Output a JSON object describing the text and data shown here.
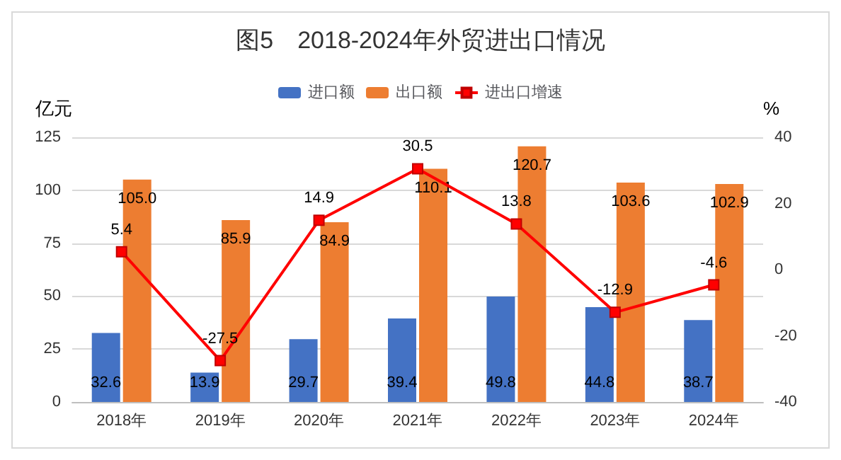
{
  "chart_data": {
    "type": "bar",
    "title": "图5　2018-2024年外贸进出口情况",
    "categories": [
      "2018年",
      "2019年",
      "2020年",
      "2021年",
      "2022年",
      "2023年",
      "2024年"
    ],
    "series": [
      {
        "name": "进口额",
        "color": "#4472c4",
        "values": [
          32.6,
          13.9,
          29.7,
          39.4,
          49.8,
          44.8,
          38.7
        ],
        "value_labels": [
          "32.6",
          "13.9",
          "29.7",
          "39.4",
          "49.8",
          "44.8",
          "38.7"
        ]
      },
      {
        "name": "出口额",
        "color": "#ed7d31",
        "values": [
          105.0,
          85.9,
          84.9,
          110.1,
          120.7,
          103.6,
          102.9
        ],
        "value_labels": [
          "105.0",
          "85.9",
          "84.9",
          "110.1",
          "120.7",
          "103.6",
          "102.9"
        ]
      },
      {
        "name": "进出口增速",
        "type": "line",
        "axis": "y2",
        "color": "#ff0000",
        "marker": "square",
        "values": [
          5.4,
          -27.5,
          14.9,
          30.5,
          13.8,
          -12.9,
          -4.6
        ],
        "value_labels": [
          "5.4",
          "-27.5",
          "14.9",
          "30.5",
          "13.8",
          "-12.9",
          "-4.6"
        ]
      }
    ],
    "ylabel": "亿元",
    "y2label": "%",
    "ylim": [
      0,
      125
    ],
    "yticks": [
      0,
      25,
      50,
      75,
      100,
      125
    ],
    "y2lim": [
      -40,
      40
    ],
    "y2ticks": [
      -40,
      -20,
      0,
      20,
      40
    ],
    "grid": "y",
    "legend": "top"
  }
}
